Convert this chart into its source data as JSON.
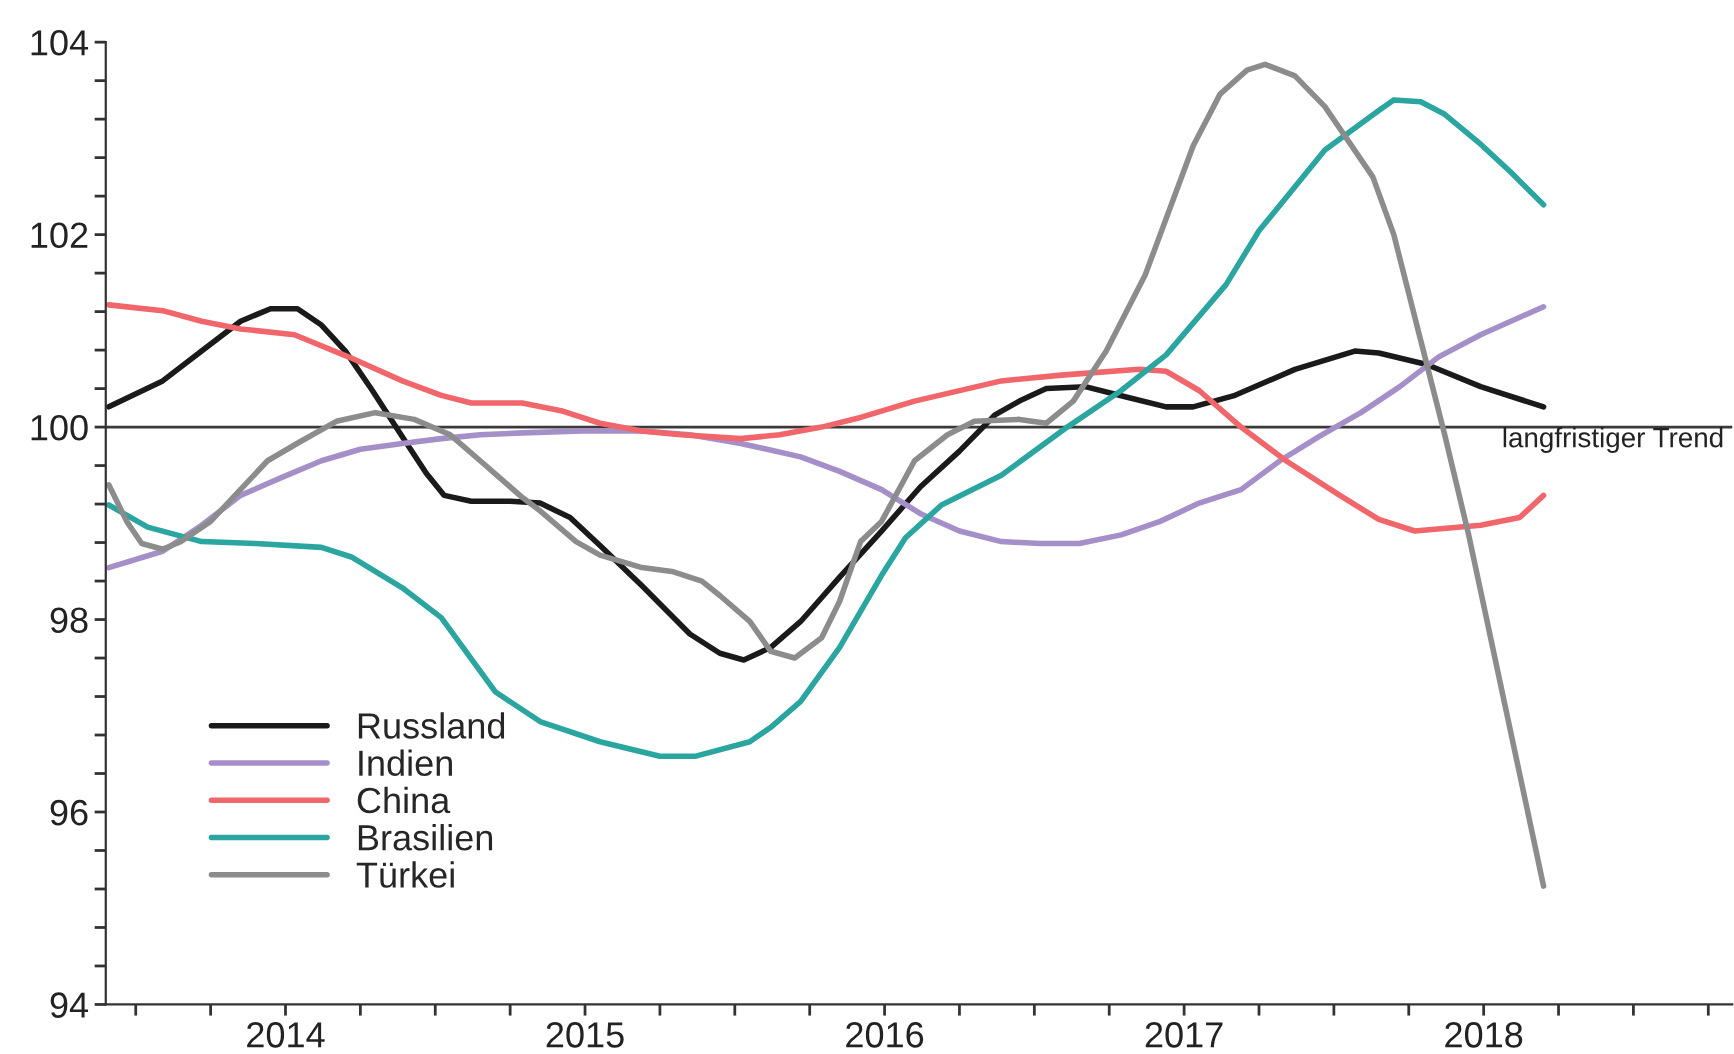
{
  "chart_data": {
    "type": "line",
    "xlim": [
      2013.9,
      2019.33
    ],
    "xticks": [
      {
        "value": 2014,
        "label": null
      },
      {
        "value": 2014.25,
        "label": null
      },
      {
        "value": 2014.5,
        "label": "2014"
      },
      {
        "value": 2014.75,
        "label": null
      },
      {
        "value": 2015,
        "label": null
      },
      {
        "value": 2015.25,
        "label": null
      },
      {
        "value": 2015.5,
        "label": "2015"
      },
      {
        "value": 2015.75,
        "label": null
      },
      {
        "value": 2016,
        "label": null
      },
      {
        "value": 2016.25,
        "label": null
      },
      {
        "value": 2016.5,
        "label": "2016"
      },
      {
        "value": 2016.75,
        "label": null
      },
      {
        "value": 2017,
        "label": null
      },
      {
        "value": 2017.25,
        "label": null
      },
      {
        "value": 2017.5,
        "label": "2017"
      },
      {
        "value": 2017.75,
        "label": null
      },
      {
        "value": 2018,
        "label": null
      },
      {
        "value": 2018.25,
        "label": null
      },
      {
        "value": 2018.5,
        "label": "2018"
      },
      {
        "value": 2018.75,
        "label": null
      },
      {
        "value": 2019,
        "label": null
      },
      {
        "value": 2019.25,
        "label": null
      }
    ],
    "ylim": [
      94,
      104
    ],
    "yticks": [
      94,
      {
        "value": 94.4,
        "label": null
      },
      {
        "value": 94.8,
        "label": null
      },
      {
        "value": 95.2,
        "label": null
      },
      {
        "value": 95.6,
        "label": null
      },
      96,
      {
        "value": 96.4,
        "label": null
      },
      {
        "value": 96.8,
        "label": null
      },
      {
        "value": 97.2,
        "label": null
      },
      {
        "value": 97.6,
        "label": null
      },
      98,
      {
        "value": 98.4,
        "label": null
      },
      {
        "value": 98.8,
        "label": null
      },
      {
        "value": 99.2,
        "label": null
      },
      {
        "value": 99.6,
        "label": null
      },
      100,
      {
        "value": 100.4,
        "label": null
      },
      {
        "value": 100.8,
        "label": null
      },
      {
        "value": 101.2,
        "label": null
      },
      {
        "value": 101.6,
        "label": null
      },
      102,
      {
        "value": 102.4,
        "label": null
      },
      {
        "value": 102.8,
        "label": null
      },
      {
        "value": 103.2,
        "label": null
      },
      {
        "value": 103.6,
        "label": null
      },
      104
    ],
    "grid": false,
    "legend": "bottom left",
    "ref_lines": [
      {
        "axis": "y",
        "value": 100,
        "label": "langfristiger Trend",
        "color": "#3a3a3a"
      }
    ],
    "series": [
      {
        "name": "Russland",
        "color": "#1a1a1a",
        "x": [
          2013.91,
          2014.09,
          2014.22,
          2014.35,
          2014.45,
          2014.54,
          2014.62,
          2014.7,
          2014.79,
          2014.89,
          2014.97,
          2015.03,
          2015.12,
          2015.25,
          2015.35,
          2015.45,
          2015.55,
          2015.69,
          2015.85,
          2015.95,
          2016.03,
          2016.12,
          2016.22,
          2016.35,
          2016.49,
          2016.62,
          2016.75,
          2016.87,
          2016.95,
          2017.04,
          2017.17,
          2017.31,
          2017.44,
          2017.53,
          2017.67,
          2017.87,
          2018.07,
          2018.15,
          2018.31,
          2018.49,
          2018.7
        ],
        "values": [
          100.21,
          100.48,
          100.79,
          101.1,
          101.23,
          101.23,
          101.06,
          100.79,
          100.38,
          99.9,
          99.52,
          99.29,
          99.23,
          99.23,
          99.21,
          99.06,
          98.77,
          98.35,
          97.85,
          97.65,
          97.58,
          97.71,
          97.98,
          98.44,
          98.92,
          99.38,
          99.75,
          100.13,
          100.27,
          100.4,
          100.42,
          100.31,
          100.21,
          100.21,
          100.33,
          100.6,
          100.79,
          100.77,
          100.65,
          100.42,
          100.21
        ]
      },
      {
        "name": "Indien",
        "color": "#a58fc8",
        "x": [
          2013.91,
          2014.09,
          2014.22,
          2014.35,
          2014.49,
          2014.62,
          2014.75,
          2014.89,
          2015.02,
          2015.15,
          2015.29,
          2015.49,
          2015.69,
          2015.85,
          2016.02,
          2016.22,
          2016.35,
          2016.49,
          2016.62,
          2016.75,
          2016.89,
          2017.02,
          2017.15,
          2017.29,
          2017.42,
          2017.55,
          2017.69,
          2017.82,
          2017.95,
          2018.09,
          2018.22,
          2018.35,
          2018.49,
          2018.7
        ],
        "values": [
          98.54,
          98.71,
          98.98,
          99.29,
          99.48,
          99.65,
          99.77,
          99.83,
          99.88,
          99.92,
          99.94,
          99.96,
          99.96,
          99.92,
          99.83,
          99.69,
          99.54,
          99.35,
          99.1,
          98.92,
          98.81,
          98.79,
          98.79,
          98.88,
          99.02,
          99.21,
          99.35,
          99.65,
          99.9,
          100.15,
          100.42,
          100.73,
          100.96,
          101.25
        ]
      },
      {
        "name": "China",
        "color": "#f0666a",
        "x": [
          2013.91,
          2014.09,
          2014.22,
          2014.35,
          2014.53,
          2014.71,
          2014.89,
          2015.02,
          2015.12,
          2015.29,
          2015.42,
          2015.55,
          2015.69,
          2015.82,
          2016.02,
          2016.15,
          2016.29,
          2016.42,
          2016.6,
          2016.89,
          2017.09,
          2017.35,
          2017.44,
          2017.55,
          2017.69,
          2017.84,
          2018.02,
          2018.15,
          2018.27,
          2018.49,
          2018.62,
          2018.7
        ],
        "values": [
          101.27,
          101.21,
          101.1,
          101.02,
          100.96,
          100.73,
          100.48,
          100.33,
          100.25,
          100.25,
          100.17,
          100.04,
          99.96,
          99.92,
          99.88,
          99.92,
          100.0,
          100.1,
          100.27,
          100.48,
          100.54,
          100.6,
          100.58,
          100.38,
          100.0,
          99.65,
          99.29,
          99.04,
          98.92,
          98.98,
          99.06,
          99.29
        ]
      },
      {
        "name": "Brasilien",
        "color": "#2aa59f",
        "x": [
          2013.91,
          2014.04,
          2014.22,
          2014.4,
          2014.62,
          2014.72,
          2014.89,
          2015.02,
          2015.2,
          2015.35,
          2015.55,
          2015.75,
          2015.87,
          2016.05,
          2016.12,
          2016.22,
          2016.35,
          2016.49,
          2016.57,
          2016.69,
          2016.89,
          2017.11,
          2017.29,
          2017.44,
          2017.64,
          2017.75,
          2017.97,
          2018.15,
          2018.2,
          2018.29,
          2018.37,
          2018.49,
          2018.59,
          2018.7
        ],
        "values": [
          99.19,
          98.96,
          98.81,
          98.79,
          98.75,
          98.65,
          98.33,
          98.02,
          97.25,
          96.94,
          96.73,
          96.58,
          96.58,
          96.73,
          96.88,
          97.15,
          97.71,
          98.46,
          98.85,
          99.19,
          99.5,
          100.0,
          100.38,
          100.75,
          101.48,
          102.04,
          102.88,
          103.29,
          103.4,
          103.38,
          103.25,
          102.94,
          102.65,
          102.31
        ]
      },
      {
        "name": "Türkei",
        "color": "#8c8c8c",
        "x": [
          2013.91,
          2013.97,
          2014.02,
          2014.09,
          2014.15,
          2014.25,
          2014.44,
          2014.55,
          2014.67,
          2014.8,
          2014.93,
          2015.05,
          2015.15,
          2015.29,
          2015.35,
          2015.47,
          2015.55,
          2015.69,
          2015.79,
          2015.89,
          2015.95,
          2016.05,
          2016.12,
          2016.2,
          2016.29,
          2016.35,
          2016.42,
          2016.49,
          2016.6,
          2016.71,
          2016.8,
          2016.95,
          2017.04,
          2017.13,
          2017.24,
          2017.37,
          2017.53,
          2017.62,
          2017.71,
          2017.77,
          2017.87,
          2017.97,
          2018.13,
          2018.2,
          2018.29,
          2018.37,
          2018.45,
          2018.7
        ],
        "values": [
          99.4,
          99.02,
          98.79,
          98.73,
          98.81,
          99.02,
          99.65,
          99.85,
          100.06,
          100.15,
          100.08,
          99.92,
          99.65,
          99.27,
          99.13,
          98.81,
          98.67,
          98.54,
          98.5,
          98.4,
          98.25,
          97.98,
          97.67,
          97.6,
          97.81,
          98.19,
          98.81,
          99.02,
          99.65,
          99.92,
          100.06,
          100.08,
          100.04,
          100.27,
          100.79,
          101.58,
          102.92,
          103.46,
          103.71,
          103.77,
          103.65,
          103.33,
          102.6,
          102.0,
          100.9,
          99.92,
          98.88,
          95.23
        ]
      }
    ]
  }
}
